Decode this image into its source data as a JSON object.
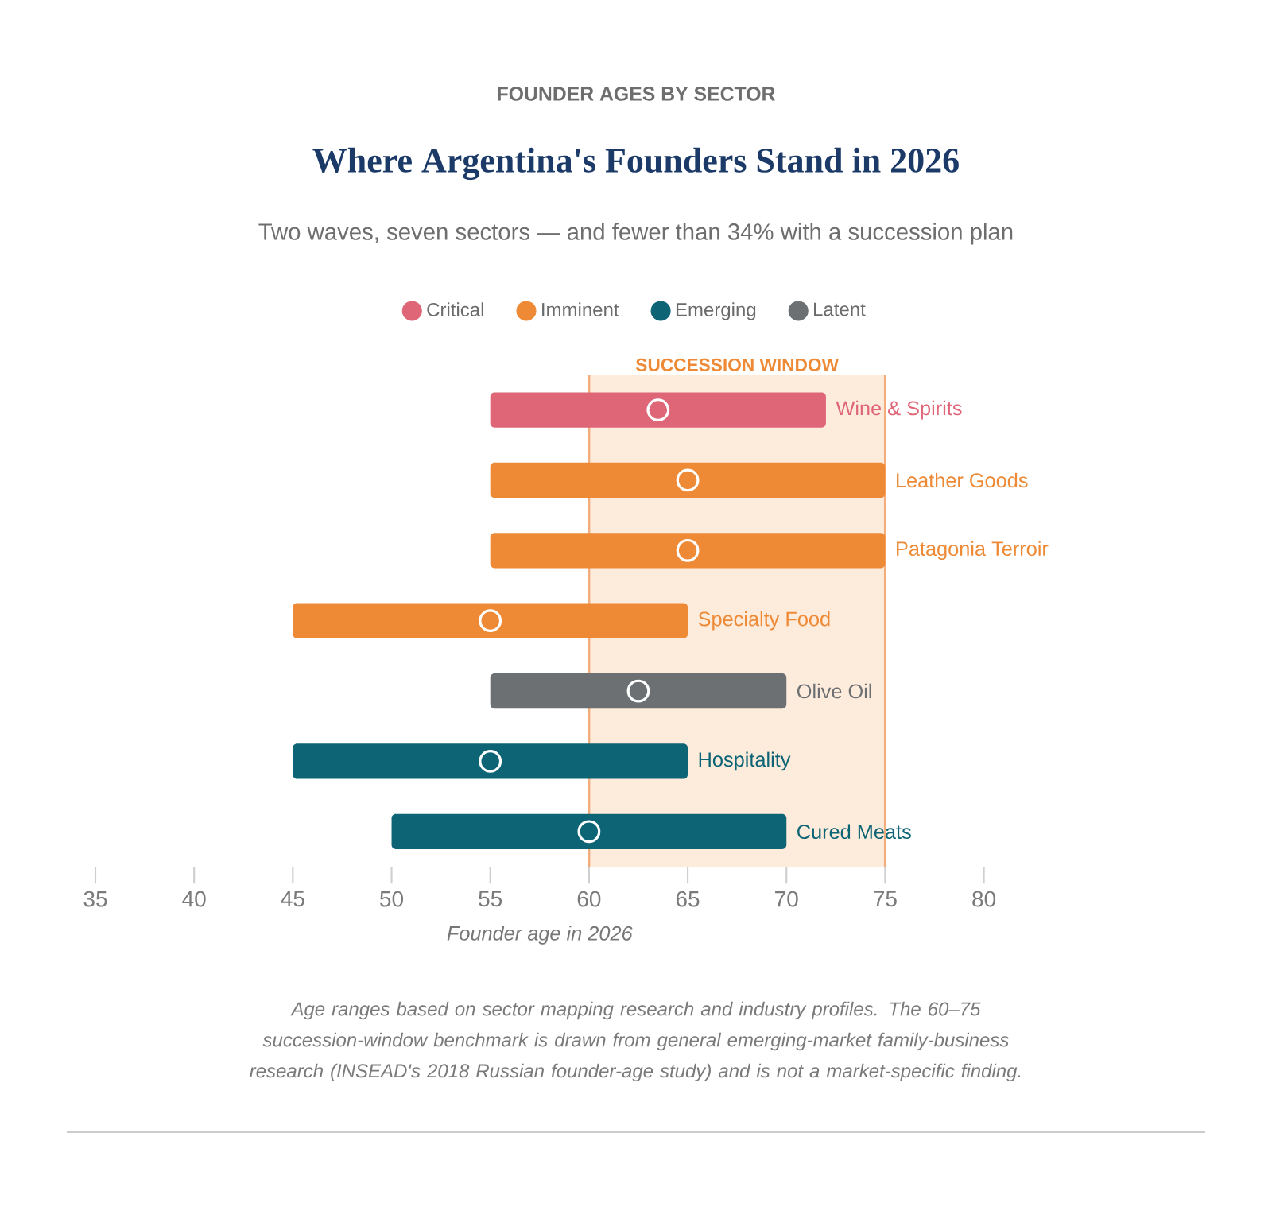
{
  "chart_data": {
    "type": "bar",
    "orientation": "horizontal",
    "title": "Where Argentina's Founders Stand in 2026",
    "subtitle": "Two waves, seven sectors — and fewer than 34% with a succession plan",
    "xlabel": "Founder age in 2026",
    "categories": [
      "Wine & Spirits",
      "Leather Goods",
      "Patagonia Terroir",
      "Specialty Food",
      "Olive Oil",
      "Hospitality",
      "Cured Meats"
    ],
    "series": [
      {
        "name": "Critical",
        "color": "#de6677",
        "base": [
          55,
          null,
          null,
          null,
          null,
          null,
          null
        ],
        "values": [
          17,
          null,
          null,
          null,
          null,
          null,
          null
        ]
      },
      {
        "name": "Imminent",
        "color": "#ee8a36",
        "base": [
          null,
          55,
          55,
          45,
          null,
          null,
          null
        ],
        "values": [
          null,
          20,
          20,
          20,
          null,
          null,
          null
        ]
      },
      {
        "name": "Emerging",
        "color": "#0c6475",
        "base": [
          null,
          null,
          null,
          null,
          null,
          45,
          50
        ],
        "values": [
          null,
          null,
          null,
          null,
          null,
          20,
          20
        ]
      },
      {
        "name": "Latent",
        "color": "#6c7073",
        "base": [
          null,
          null,
          null,
          null,
          55,
          null,
          null
        ],
        "values": [
          null,
          null,
          null,
          null,
          15,
          null,
          null
        ]
      },
      {
        "type": "scatter",
        "color": "#ffffff",
        "marker": "circle",
        "x": [
          "Wine & Spirits",
          "Leather Goods",
          "Patagonia Terroir",
          "Specialty Food",
          "Olive Oil",
          "Hospitality",
          "Cured Meats"
        ],
        "values": [
          63.5,
          65,
          65,
          55,
          62.5,
          55,
          60
        ]
      }
    ],
    "xlim": [
      35,
      80
    ],
    "xticks": [
      35,
      40,
      45,
      50,
      55,
      60,
      65,
      70,
      75,
      80
    ],
    "bands": [
      {
        "axis": "x",
        "from": 60,
        "to": 75,
        "label": "SUCCESSION WINDOW",
        "color": "#fdebdc"
      }
    ],
    "ref_lines": [
      {
        "axis": "x",
        "value": 60,
        "color": "#f3ac7b"
      },
      {
        "axis": "x",
        "value": 75,
        "color": "#f3ac7b"
      }
    ],
    "legend": "top",
    "tick_labels": "x",
    "annotations": [
      "FOUNDER AGES BY SECTOR",
      "Age ranges based on sector mapping research and industry profiles. The 60–75 succession-window benchmark is drawn from general emerging-market family-business research (INSEAD's 2018 Russian founder-age study) and is not a market-specific finding."
    ]
  }
}
